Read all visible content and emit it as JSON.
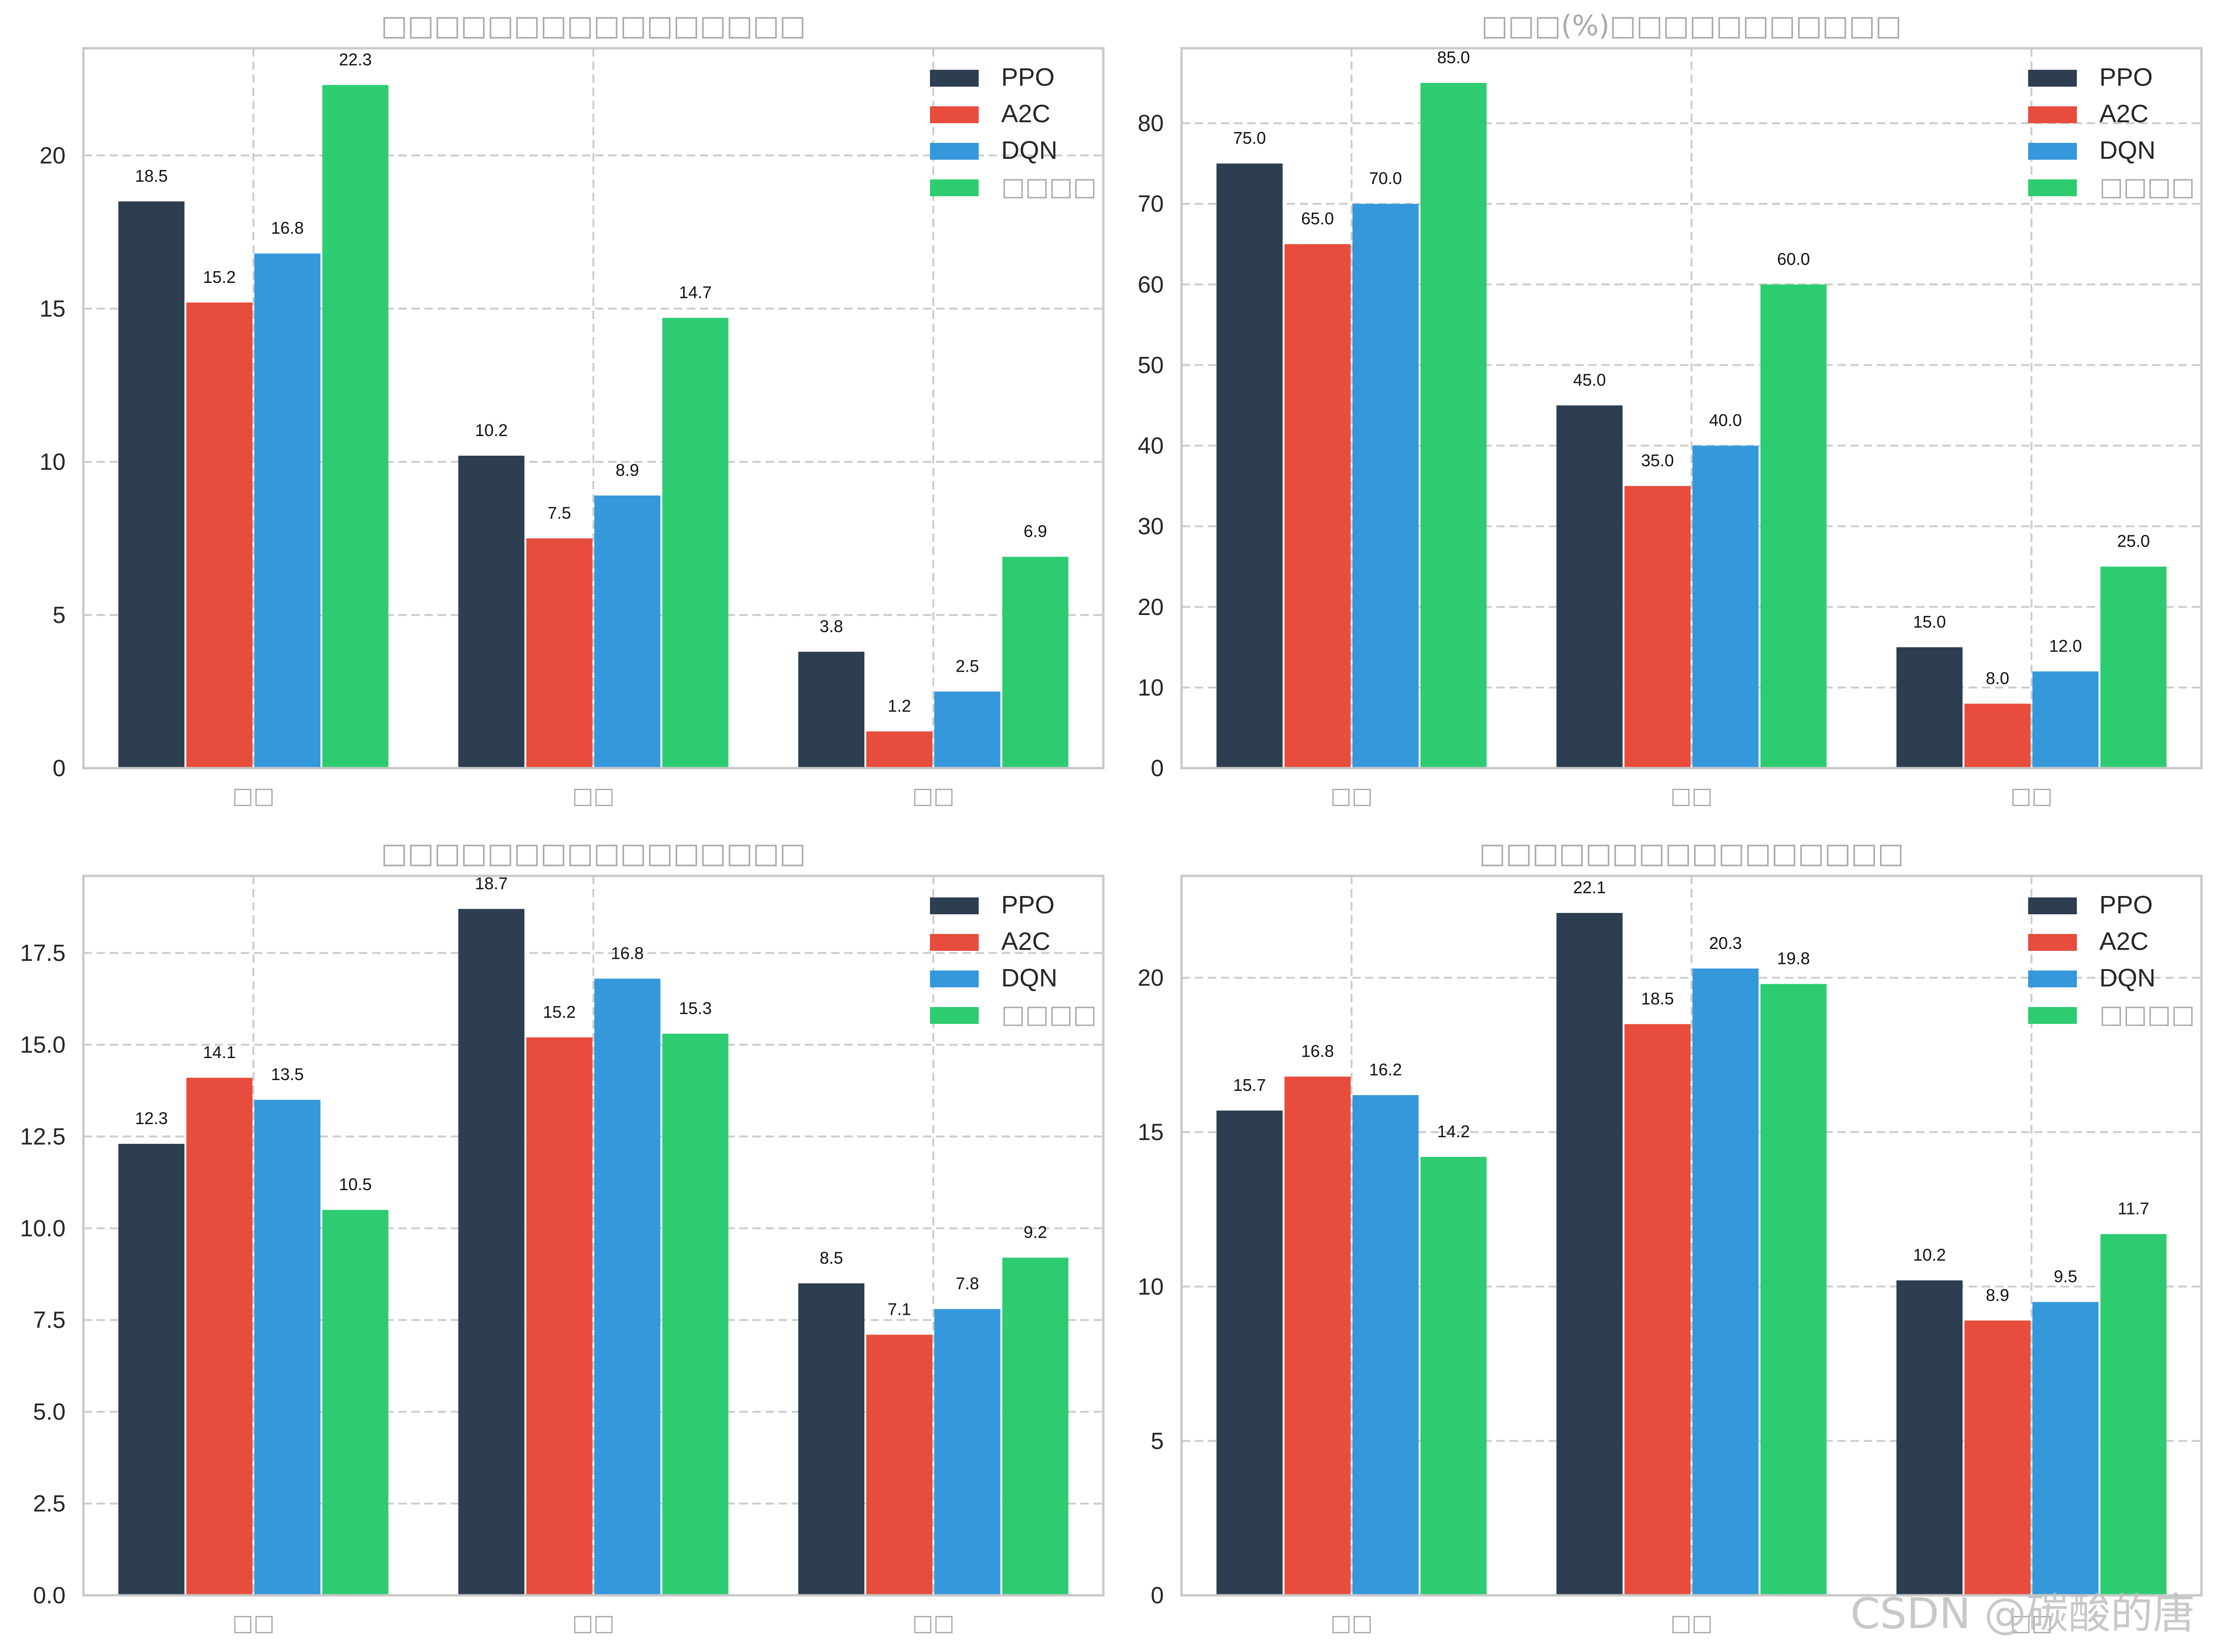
{
  "colors": {
    "PPO": "#2c3e50",
    "A2C": "#e74c3c",
    "DQN": "#3498db",
    "ours": "#2ecc71",
    "grid": "#cccccc",
    "axis": "#c8c8c8",
    "cjk_text": "#aaaaaa",
    "text": "#262626"
  },
  "watermark": "CSDN @碳酸的唐",
  "chart_data": [
    {
      "type": "bar",
      "title": "□□□□□□□□□□□□□□□□",
      "categories": [
        "□□",
        "□□",
        "□□"
      ],
      "ylim": [
        0,
        23.5
      ],
      "yticks": [
        0,
        5,
        10,
        15,
        20
      ],
      "ytick_labels": [
        "0",
        "5",
        "10",
        "15",
        "20"
      ],
      "value_labels_decimals": 1,
      "legend_position": "upper right",
      "grid": true,
      "series": [
        {
          "name": "PPO",
          "legend_label": "PPO",
          "color_key": "PPO",
          "values": [
            18.5,
            10.2,
            3.8
          ]
        },
        {
          "name": "A2C",
          "legend_label": "A2C",
          "color_key": "A2C",
          "values": [
            15.2,
            7.5,
            1.2
          ]
        },
        {
          "name": "DQN",
          "legend_label": "DQN",
          "color_key": "DQN",
          "values": [
            16.8,
            8.9,
            2.5
          ]
        },
        {
          "name": "ours",
          "legend_label": "□□□□",
          "color_key": "ours",
          "values": [
            22.3,
            14.7,
            6.9
          ]
        }
      ]
    },
    {
      "type": "bar",
      "title": "□□□(%)□□□□□□□□□□□",
      "categories": [
        "□□",
        "□□",
        "□□"
      ],
      "ylim": [
        0,
        89.3
      ],
      "yticks": [
        0,
        10,
        20,
        30,
        40,
        50,
        60,
        70,
        80
      ],
      "ytick_labels": [
        "0",
        "10",
        "20",
        "30",
        "40",
        "50",
        "60",
        "70",
        "80"
      ],
      "value_labels_decimals": 1,
      "legend_position": "upper right",
      "grid": true,
      "series": [
        {
          "name": "PPO",
          "legend_label": "PPO",
          "color_key": "PPO",
          "values": [
            75.0,
            45.0,
            15.0
          ]
        },
        {
          "name": "A2C",
          "legend_label": "A2C",
          "color_key": "A2C",
          "values": [
            65.0,
            35.0,
            8.0
          ]
        },
        {
          "name": "DQN",
          "legend_label": "DQN",
          "color_key": "DQN",
          "values": [
            70.0,
            40.0,
            12.0
          ]
        },
        {
          "name": "ours",
          "legend_label": "□□□□",
          "color_key": "ours",
          "values": [
            85.0,
            60.0,
            25.0
          ]
        }
      ]
    },
    {
      "type": "bar",
      "title": "□□□□□□□□□□□□□□□□",
      "categories": [
        "□□",
        "□□",
        "□□"
      ],
      "ylim": [
        0,
        19.6
      ],
      "yticks": [
        0,
        2.5,
        5.0,
        7.5,
        10.0,
        12.5,
        15.0,
        17.5
      ],
      "ytick_labels": [
        "0.0",
        "2.5",
        "5.0",
        "7.5",
        "10.0",
        "12.5",
        "15.0",
        "17.5"
      ],
      "value_labels_decimals": 1,
      "legend_position": "upper right",
      "grid": true,
      "series": [
        {
          "name": "PPO",
          "legend_label": "PPO",
          "color_key": "PPO",
          "values": [
            12.3,
            18.7,
            8.5
          ]
        },
        {
          "name": "A2C",
          "legend_label": "A2C",
          "color_key": "A2C",
          "values": [
            14.1,
            15.2,
            7.1
          ]
        },
        {
          "name": "DQN",
          "legend_label": "DQN",
          "color_key": "DQN",
          "values": [
            13.5,
            16.8,
            7.8
          ]
        },
        {
          "name": "ours",
          "legend_label": "□□□□",
          "color_key": "ours",
          "values": [
            10.5,
            15.3,
            9.2
          ]
        }
      ]
    },
    {
      "type": "bar",
      "title": "□□□□□□□□□□□□□□□□",
      "categories": [
        "□□",
        "□□",
        "□□"
      ],
      "ylim": [
        0,
        23.3
      ],
      "yticks": [
        0,
        5,
        10,
        15,
        20
      ],
      "ytick_labels": [
        "0",
        "5",
        "10",
        "15",
        "20"
      ],
      "value_labels_decimals": 1,
      "legend_position": "upper right",
      "grid": true,
      "series": [
        {
          "name": "PPO",
          "legend_label": "PPO",
          "color_key": "PPO",
          "values": [
            15.7,
            22.1,
            10.2
          ]
        },
        {
          "name": "A2C",
          "legend_label": "A2C",
          "color_key": "A2C",
          "values": [
            16.8,
            18.5,
            8.9
          ]
        },
        {
          "name": "DQN",
          "legend_label": "DQN",
          "color_key": "DQN",
          "values": [
            16.2,
            20.3,
            9.5
          ]
        },
        {
          "name": "ours",
          "legend_label": "□□□□",
          "color_key": "ours",
          "values": [
            14.2,
            19.8,
            11.7
          ]
        }
      ]
    }
  ]
}
